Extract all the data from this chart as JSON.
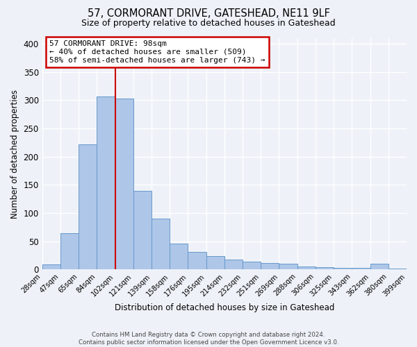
{
  "title": "57, CORMORANT DRIVE, GATESHEAD, NE11 9LF",
  "subtitle": "Size of property relative to detached houses in Gateshead",
  "xlabel": "Distribution of detached houses by size in Gateshead",
  "ylabel": "Number of detached properties",
  "bin_labels": [
    "28sqm",
    "47sqm",
    "65sqm",
    "84sqm",
    "102sqm",
    "121sqm",
    "139sqm",
    "158sqm",
    "176sqm",
    "195sqm",
    "214sqm",
    "232sqm",
    "251sqm",
    "269sqm",
    "288sqm",
    "306sqm",
    "325sqm",
    "343sqm",
    "362sqm",
    "380sqm",
    "399sqm"
  ],
  "bar_heights": [
    9,
    64,
    222,
    307,
    303,
    139,
    90,
    46,
    31,
    23,
    17,
    14,
    11,
    10,
    5,
    4,
    3,
    3,
    10,
    2
  ],
  "bar_color": "#aec6e8",
  "bar_edge_color": "#6699cc",
  "vline_position": 4.5,
  "vline_color": "#cc0000",
  "ylim": [
    0,
    410
  ],
  "yticks": [
    0,
    50,
    100,
    150,
    200,
    250,
    300,
    350,
    400
  ],
  "annotation_title": "57 CORMORANT DRIVE: 98sqm",
  "annotation_line1": "← 40% of detached houses are smaller (509)",
  "annotation_line2": "58% of semi-detached houses are larger (743) →",
  "annotation_box_color": "#ffffff",
  "annotation_box_edge": "#cc0000",
  "footer_line1": "Contains HM Land Registry data © Crown copyright and database right 2024.",
  "footer_line2": "Contains public sector information licensed under the Open Government Licence v3.0.",
  "background_color": "#eef2f8",
  "grid_color": "#ffffff"
}
